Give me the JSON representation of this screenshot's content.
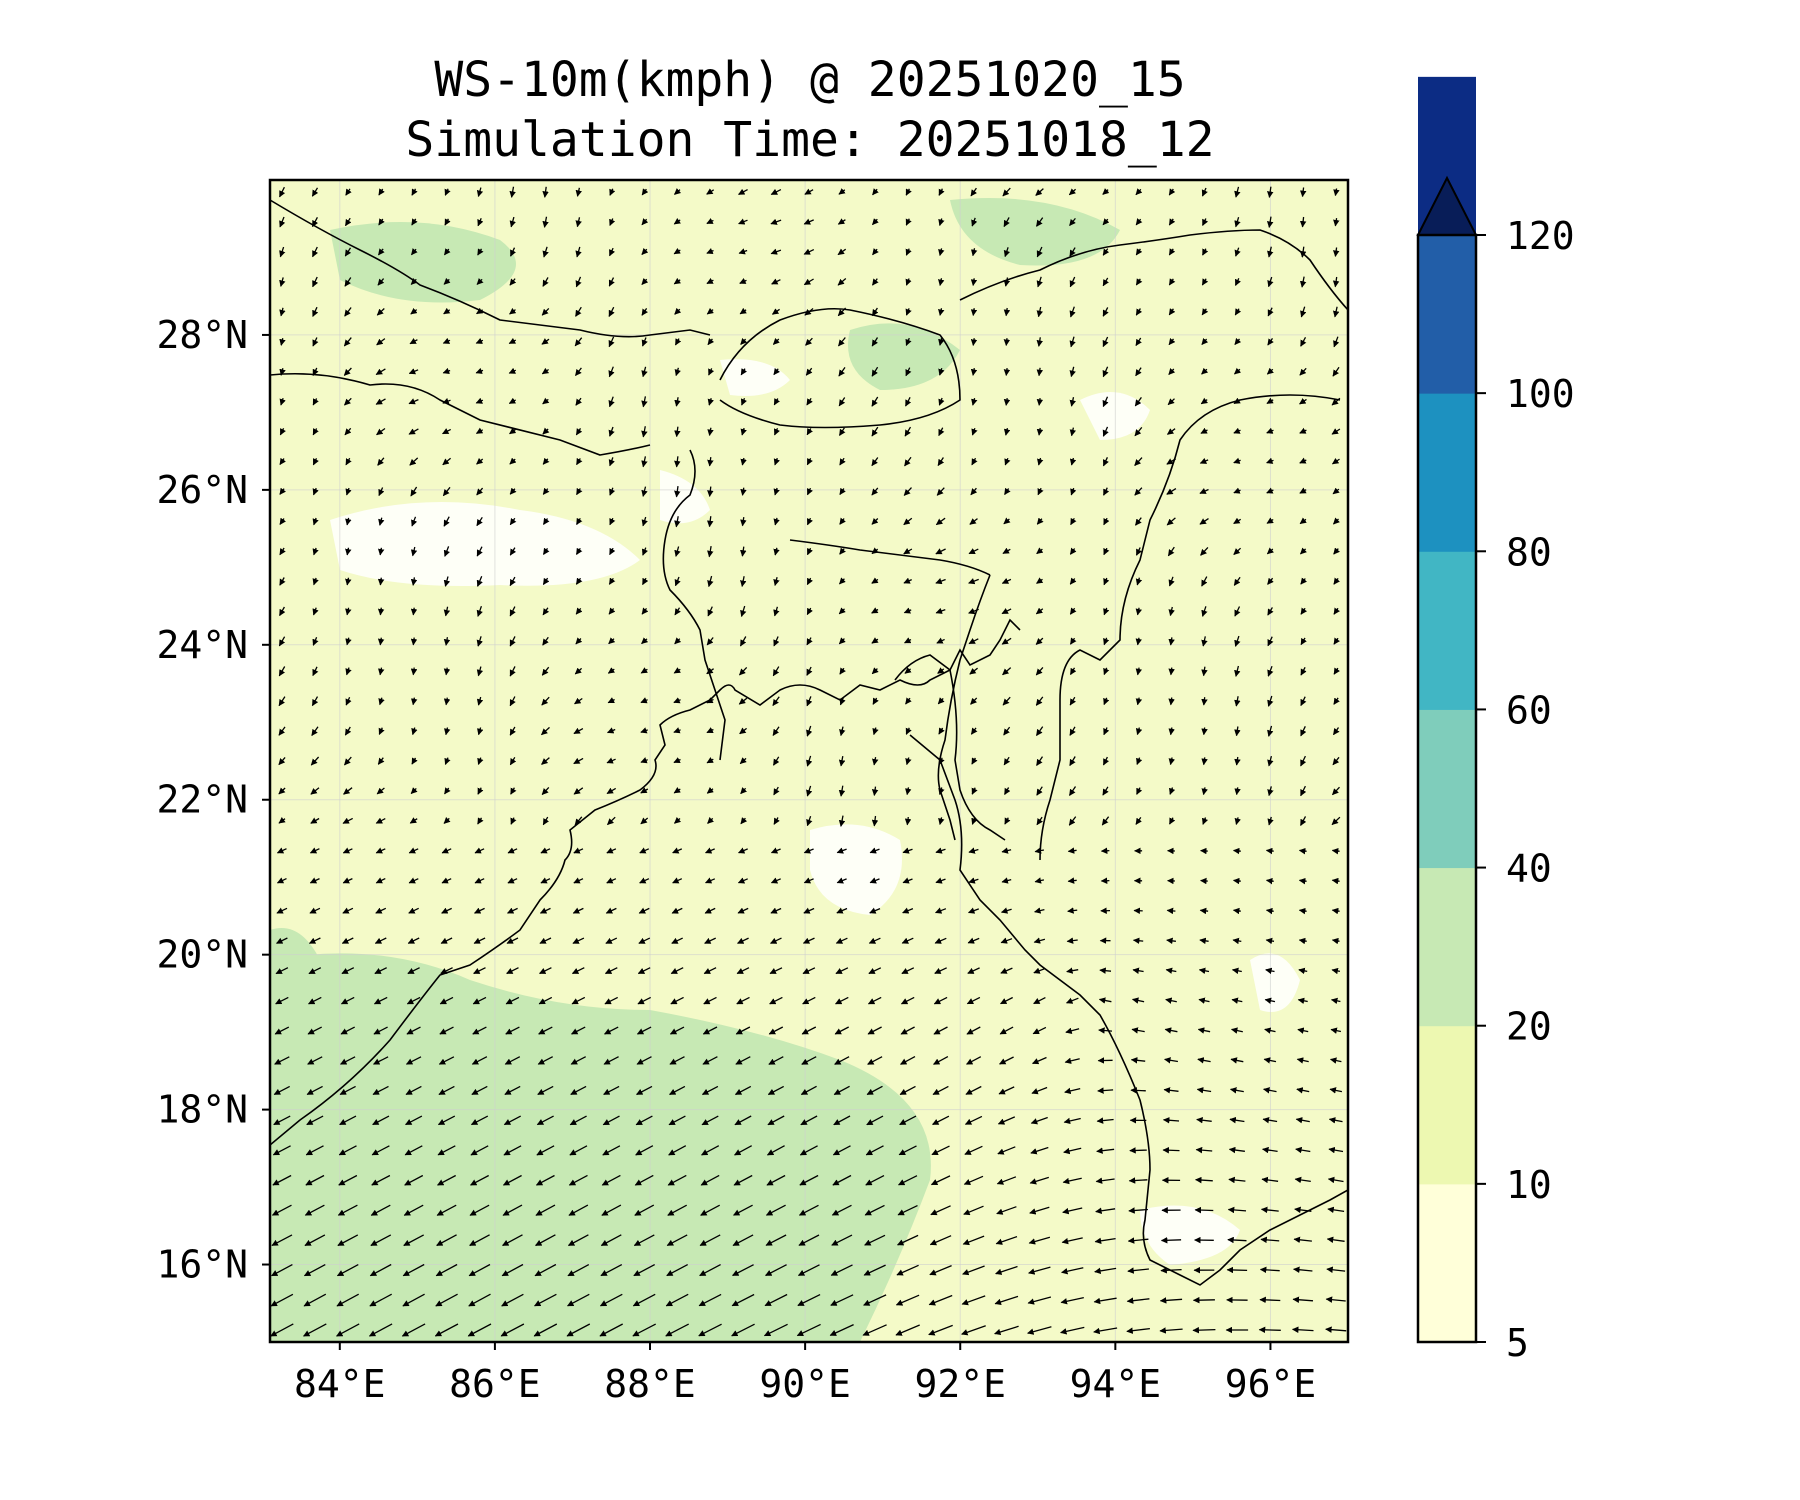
{
  "title": {
    "line1": "WS-10m(kmph) @ 20251020_15",
    "line2": "Simulation Time: 20251018_12"
  },
  "chart_data": {
    "type": "map",
    "variable": "WS-10m(kmph)",
    "valid_time": "20251020_15",
    "simulation_time": "20251018_12",
    "lon_range": [
      83.1,
      97.0
    ],
    "lat_range": [
      15.0,
      30.0
    ],
    "x_ticks": [
      "84°E",
      "86°E",
      "88°E",
      "90°E",
      "92°E",
      "94°E",
      "96°E"
    ],
    "y_ticks": [
      "16°N",
      "18°N",
      "20°N",
      "22°N",
      "24°N",
      "26°N",
      "28°N"
    ],
    "colorbar": {
      "levels": [
        5,
        10,
        20,
        40,
        60,
        80,
        100,
        120
      ],
      "colors": [
        "#ffffd9",
        "#edf8b1",
        "#c7e9b4",
        "#7fcdbb",
        "#41b6c4",
        "#1d91c0",
        "#225ea8",
        "#0c2c84"
      ],
      "extend_color": "#081d58",
      "tick_labels": [
        "5",
        "10",
        "20",
        "40",
        "60",
        "80",
        "100",
        "120"
      ],
      "extend": "max"
    },
    "features": [
      "coastlines",
      "country borders",
      "10m wind vectors"
    ],
    "grid": true
  }
}
